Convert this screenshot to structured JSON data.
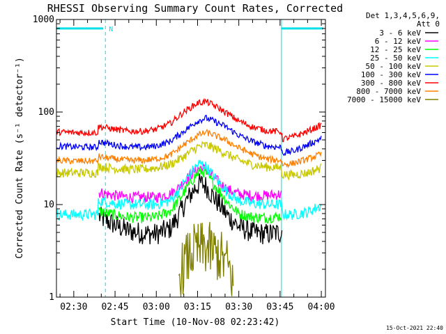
{
  "chart_data": {
    "type": "line",
    "title": "RHESSI Observing Summary Count Rates, Corrected",
    "xlabel": "Start Time (10-Nov-08 02:23:42)",
    "ylabel": "Corrected Count Rate (s⁻¹ detector⁻¹)",
    "x_tick_labels": [
      "02:30",
      "02:45",
      "03:00",
      "03:15",
      "03:30",
      "03:45",
      "04:00"
    ],
    "x_tick_minutes": [
      150,
      165,
      180,
      195,
      210,
      225,
      240
    ],
    "xlim_minutes": [
      143.7,
      241.5
    ],
    "y_scale": "log",
    "ylim": [
      1,
      1000
    ],
    "y_tick_labels": [
      "1",
      "10",
      "100",
      "1000"
    ],
    "y_tick_values": [
      1,
      10,
      100,
      1000
    ],
    "legend_header": [
      "Det 1,3,4,5,6,9,",
      "Att 0"
    ],
    "legend_position": "right",
    "datestamp": "15-Oct-2021 22:40",
    "night_flag_label": "N",
    "night_intervals_minutes": [
      [
        143.7,
        161.5
      ],
      [
        225.5,
        241.5
      ]
    ],
    "night_flag_value": 800,
    "series": [
      {
        "name": "3 - 6 keV",
        "color": "#000000",
        "x": [
          143.7,
          158.7,
          159,
          165,
          170,
          175,
          180,
          185,
          188,
          191,
          194,
          196,
          198,
          200,
          203,
          206,
          210,
          215,
          220,
          225.5,
          225.8,
          235,
          240
        ],
        "y": [
          null,
          null,
          7.5,
          6,
          5.2,
          4.9,
          4.8,
          5.5,
          7.5,
          11,
          15,
          17,
          16,
          13,
          10,
          7.5,
          5.8,
          5,
          4.8,
          5,
          5.5,
          null,
          null
        ],
        "noise": 0.12
      },
      {
        "name": "6 - 12 keV",
        "color": "#ff00ff",
        "x": [
          143.7,
          158.7,
          159,
          165,
          170,
          175,
          180,
          185,
          188,
          191,
          194,
          196,
          198,
          200,
          203,
          206,
          210,
          215,
          220,
          225.5,
          225.8,
          235,
          240
        ],
        "y": [
          null,
          null,
          13.5,
          12.5,
          12,
          12,
          12,
          13,
          15,
          19,
          23,
          25,
          24,
          21,
          17,
          14.5,
          13,
          12.5,
          12.5,
          13,
          null,
          null,
          null
        ],
        "noise": 0.06
      },
      {
        "name": "12 - 25 keV",
        "color": "#00ff00",
        "x": [
          143.7,
          158.7,
          159,
          165,
          170,
          175,
          180,
          185,
          188,
          191,
          194,
          196,
          198,
          200,
          203,
          206,
          210,
          215,
          220,
          225.5,
          225.8,
          235,
          240
        ],
        "y": [
          null,
          null,
          8.5,
          7.7,
          7.3,
          7.2,
          7.3,
          8.5,
          11,
          15,
          20,
          23,
          22,
          18,
          14,
          10.5,
          8,
          7.3,
          7.2,
          7.5,
          null,
          null,
          null
        ],
        "noise": 0.06
      },
      {
        "name": "25 - 50 keV",
        "color": "#00ffff",
        "x": [
          143.7,
          150,
          158.7,
          159,
          165,
          170,
          175,
          180,
          185,
          188,
          191,
          194,
          196,
          198,
          200,
          203,
          206,
          210,
          215,
          220,
          225.5,
          225.8,
          230,
          235,
          240
        ],
        "y": [
          7.8,
          7.8,
          7.8,
          11,
          10.3,
          10,
          10,
          10,
          11,
          14,
          19,
          25,
          28,
          26,
          22,
          17,
          13.5,
          11,
          10.3,
          10,
          10,
          7.8,
          7.8,
          8.3,
          9.8
        ],
        "noise": 0.06
      },
      {
        "name": "50 - 100 keV",
        "color": "#c8c800",
        "x": [
          143.7,
          150,
          158.7,
          159,
          165,
          170,
          175,
          180,
          185,
          190,
          195,
          198,
          200,
          205,
          210,
          215,
          220,
          225.5,
          225.8,
          230,
          235,
          240
        ],
        "y": [
          22,
          22,
          22,
          26,
          24.5,
          24,
          24,
          25,
          27,
          33,
          42,
          44,
          42,
          36,
          30,
          27,
          25.5,
          25,
          21,
          21,
          22,
          25
        ],
        "noise": 0.05
      },
      {
        "name": "100 - 300 keV",
        "color": "#0000ff",
        "x": [
          143.7,
          150,
          158.7,
          159,
          165,
          170,
          175,
          180,
          185,
          190,
          195,
          198,
          200,
          205,
          210,
          215,
          220,
          225.5,
          225.8,
          230,
          235,
          240
        ],
        "y": [
          43,
          42,
          41.5,
          48,
          44,
          42,
          41.5,
          43,
          48,
          62,
          80,
          86,
          82,
          70,
          56,
          48,
          43,
          41.5,
          36,
          38,
          44,
          52
        ],
        "noise": 0.035
      },
      {
        "name": "300 - 800 keV",
        "color": "#ff0000",
        "x": [
          143.7,
          150,
          158.7,
          159,
          165,
          170,
          175,
          180,
          185,
          190,
          195,
          198,
          200,
          205,
          210,
          215,
          220,
          225.5,
          225.8,
          230,
          235,
          240
        ],
        "y": [
          61,
          60,
          60,
          70,
          65,
          62,
          62,
          65,
          75,
          100,
          125,
          130,
          122,
          100,
          80,
          69,
          63,
          61,
          51,
          54,
          62,
          72
        ],
        "noise": 0.035
      },
      {
        "name": "800 - 7000 keV",
        "color": "#ff8000",
        "x": [
          143.7,
          150,
          158.7,
          159,
          165,
          170,
          175,
          180,
          185,
          190,
          195,
          198,
          200,
          205,
          210,
          215,
          220,
          225.5,
          225.8,
          230,
          235,
          240
        ],
        "y": [
          30,
          29.5,
          29.5,
          33,
          31,
          30,
          30,
          31,
          34,
          44,
          56,
          60,
          58,
          50,
          41,
          35,
          31,
          30,
          27,
          28,
          31,
          35
        ],
        "noise": 0.035
      },
      {
        "name": "7000 - 15000 keV",
        "color": "#808000",
        "x": [
          143.7,
          150,
          158.7,
          159,
          185,
          188,
          190,
          192,
          194,
          196,
          198,
          200,
          202,
          204,
          206,
          208,
          235,
          240
        ],
        "y": [
          null,
          null,
          null,
          null,
          null,
          1.6,
          2.2,
          2.8,
          3.2,
          3.3,
          3.4,
          3.2,
          2.9,
          2.6,
          2.2,
          1.5,
          null,
          null
        ],
        "noise": 0.3
      }
    ]
  }
}
